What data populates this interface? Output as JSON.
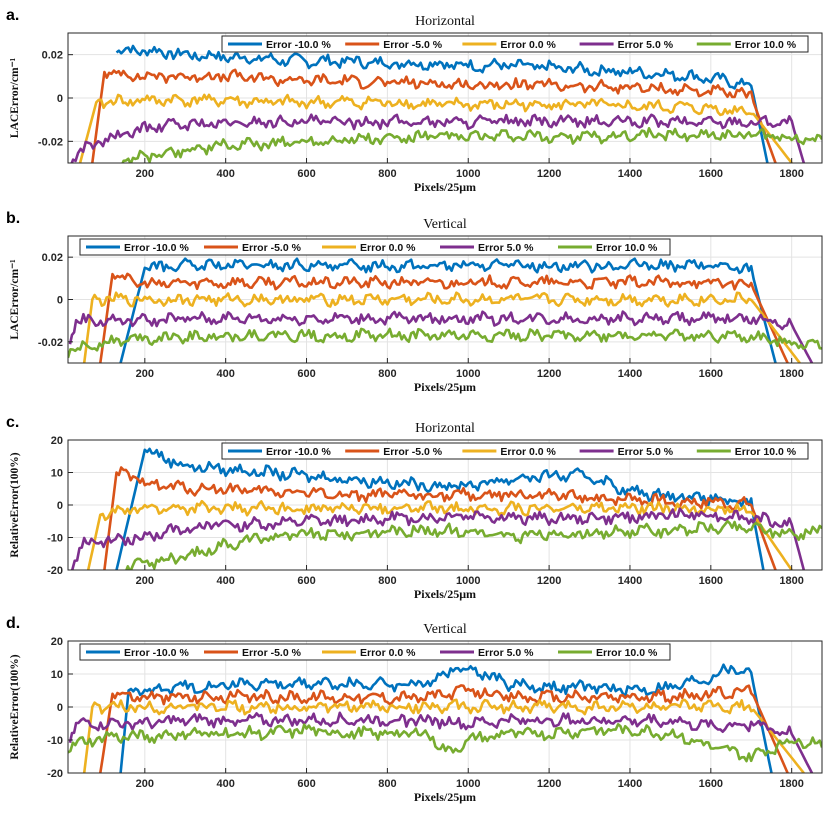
{
  "chart_data": [
    {
      "panel_label": "a.",
      "title": "Horizontal",
      "type": "line",
      "xlabel": "Pixels/25μm",
      "ylabel": "LACError/cm⁻¹",
      "xlim": [
        10,
        1875
      ],
      "ylim": [
        -0.03,
        0.03
      ],
      "xticks": [
        "200",
        "400",
        "600",
        "800",
        "1000",
        "1200",
        "1400",
        "1600",
        "1800"
      ],
      "yticks": [
        "0.02",
        "0",
        "-0.02"
      ],
      "grid": true,
      "legend_position": "top-right",
      "series": [
        {
          "name": "Error -10.0 %",
          "color": "#0072BD",
          "x": [
            130,
            200,
            300,
            400,
            500,
            600,
            700,
            800,
            900,
            1000,
            1100,
            1200,
            1300,
            1400,
            1500,
            1600,
            1700,
            1740
          ],
          "y": [
            0.022,
            0.022,
            0.02,
            0.019,
            0.018,
            0.017,
            0.017,
            0.016,
            0.016,
            0.015,
            0.015,
            0.014,
            0.013,
            0.012,
            0.011,
            0.009,
            0.006,
            -0.03
          ]
        },
        {
          "name": "Error -5.0 %",
          "color": "#D95319",
          "x": [
            70,
            100,
            200,
            300,
            400,
            500,
            600,
            700,
            800,
            900,
            1000,
            1100,
            1200,
            1300,
            1400,
            1500,
            1600,
            1700,
            1760
          ],
          "y": [
            -0.03,
            0.012,
            0.01,
            0.01,
            0.01,
            0.009,
            0.008,
            0.008,
            0.007,
            0.007,
            0.006,
            0.006,
            0.006,
            0.005,
            0.005,
            0.004,
            0.003,
            0.001,
            -0.03
          ]
        },
        {
          "name": "Error 0.0 %",
          "color": "#EDB120",
          "x": [
            40,
            80,
            200,
            300,
            400,
            500,
            600,
            700,
            800,
            900,
            1000,
            1100,
            1200,
            1300,
            1400,
            1500,
            1600,
            1700,
            1800
          ],
          "y": [
            -0.03,
            -0.002,
            -0.001,
            -0.001,
            -0.001,
            -0.002,
            -0.002,
            -0.002,
            -0.002,
            -0.003,
            -0.003,
            -0.003,
            -0.003,
            -0.003,
            -0.004,
            -0.004,
            -0.005,
            -0.006,
            -0.03
          ]
        },
        {
          "name": "Error 5.0 %",
          "color": "#7E2F8E",
          "x": [
            10,
            60,
            200,
            300,
            400,
            500,
            600,
            700,
            800,
            900,
            1000,
            1100,
            1200,
            1300,
            1400,
            1500,
            1600,
            1700,
            1800,
            1830
          ],
          "y": [
            -0.03,
            -0.022,
            -0.014,
            -0.012,
            -0.012,
            -0.011,
            -0.011,
            -0.011,
            -0.011,
            -0.011,
            -0.011,
            -0.011,
            -0.011,
            -0.011,
            -0.011,
            -0.011,
            -0.011,
            -0.011,
            -0.011,
            -0.03
          ]
        },
        {
          "name": "Error 10.0 %",
          "color": "#77AC30",
          "x": [
            130,
            200,
            300,
            400,
            500,
            600,
            700,
            800,
            900,
            1000,
            1100,
            1200,
            1300,
            1400,
            1500,
            1600,
            1700,
            1800,
            1875
          ],
          "y": [
            -0.03,
            -0.027,
            -0.024,
            -0.022,
            -0.021,
            -0.02,
            -0.019,
            -0.019,
            -0.018,
            -0.018,
            -0.018,
            -0.018,
            -0.018,
            -0.017,
            -0.017,
            -0.017,
            -0.017,
            -0.018,
            -0.02
          ]
        }
      ]
    },
    {
      "panel_label": "b.",
      "title": "Vertical",
      "type": "line",
      "xlabel": "Pixels/25μm",
      "ylabel": "LACError/cm⁻¹",
      "xlim": [
        10,
        1875
      ],
      "ylim": [
        -0.03,
        0.03
      ],
      "xticks": [
        "200",
        "400",
        "600",
        "800",
        "1000",
        "1200",
        "1400",
        "1600",
        "1800"
      ],
      "yticks": [
        "0.02",
        "0",
        "-0.02"
      ],
      "grid": true,
      "legend_position": "top-left",
      "series": [
        {
          "name": "Error -10.0 %",
          "color": "#0072BD",
          "x": [
            140,
            200,
            300,
            400,
            500,
            600,
            700,
            800,
            900,
            1000,
            1100,
            1200,
            1300,
            1400,
            1500,
            1600,
            1700,
            1760
          ],
          "y": [
            -0.03,
            0.015,
            0.016,
            0.016,
            0.016,
            0.016,
            0.016,
            0.016,
            0.016,
            0.016,
            0.016,
            0.016,
            0.016,
            0.016,
            0.016,
            0.016,
            0.014,
            -0.03
          ]
        },
        {
          "name": "Error -5.0 %",
          "color": "#D95319",
          "x": [
            90,
            120,
            200,
            300,
            400,
            500,
            600,
            700,
            800,
            900,
            1000,
            1100,
            1200,
            1300,
            1400,
            1500,
            1600,
            1700,
            1790
          ],
          "y": [
            -0.03,
            0.012,
            0.007,
            0.008,
            0.008,
            0.008,
            0.008,
            0.008,
            0.008,
            0.008,
            0.008,
            0.008,
            0.008,
            0.008,
            0.008,
            0.008,
            0.008,
            0.007,
            -0.03
          ]
        },
        {
          "name": "Error 0.0 %",
          "color": "#EDB120",
          "x": [
            50,
            70,
            200,
            300,
            400,
            500,
            600,
            700,
            800,
            900,
            1000,
            1100,
            1200,
            1300,
            1400,
            1500,
            1600,
            1700,
            1820
          ],
          "y": [
            -0.03,
            0.0,
            0.0,
            0.0,
            0.0,
            0.0,
            0.0,
            0.0,
            0.0,
            0.0,
            0.0,
            0.0,
            0.0,
            0.0,
            0.0,
            0.0,
            0.0,
            0.0,
            -0.03
          ]
        },
        {
          "name": "Error 5.0 %",
          "color": "#7E2F8E",
          "x": [
            15,
            30,
            200,
            300,
            400,
            500,
            600,
            700,
            800,
            900,
            1000,
            1100,
            1200,
            1300,
            1400,
            1500,
            1600,
            1700,
            1800,
            1850
          ],
          "y": [
            -0.02,
            -0.01,
            -0.01,
            -0.009,
            -0.009,
            -0.009,
            -0.009,
            -0.009,
            -0.009,
            -0.009,
            -0.009,
            -0.009,
            -0.009,
            -0.009,
            -0.009,
            -0.009,
            -0.009,
            -0.009,
            -0.012,
            -0.03
          ]
        },
        {
          "name": "Error 10.0 %",
          "color": "#77AC30",
          "x": [
            10,
            100,
            200,
            300,
            400,
            500,
            600,
            700,
            800,
            900,
            1000,
            1100,
            1200,
            1300,
            1400,
            1500,
            1600,
            1700,
            1800,
            1875
          ],
          "y": [
            -0.025,
            -0.02,
            -0.018,
            -0.018,
            -0.017,
            -0.017,
            -0.017,
            -0.017,
            -0.017,
            -0.017,
            -0.017,
            -0.017,
            -0.017,
            -0.017,
            -0.017,
            -0.017,
            -0.017,
            -0.018,
            -0.02,
            -0.022
          ]
        }
      ]
    },
    {
      "panel_label": "c.",
      "title": "Horizontal",
      "type": "line",
      "xlabel": "Pixels/25μm",
      "ylabel": "RelativeError(100%)",
      "xlim": [
        10,
        1875
      ],
      "ylim": [
        -20,
        20
      ],
      "xticks": [
        "200",
        "400",
        "600",
        "800",
        "1000",
        "1200",
        "1400",
        "1600",
        "1800"
      ],
      "yticks": [
        "20",
        "10",
        "0",
        "-10",
        "-20"
      ],
      "grid": true,
      "legend_position": "top-right",
      "series": [
        {
          "name": "Error -10.0 %",
          "color": "#0072BD",
          "x": [
            130,
            200,
            300,
            400,
            500,
            600,
            700,
            800,
            900,
            1000,
            1100,
            1200,
            1300,
            1400,
            1500,
            1600,
            1700,
            1730
          ],
          "y": [
            -20,
            17,
            12,
            11,
            10,
            9,
            8,
            7,
            6,
            6,
            8,
            9,
            9,
            4,
            3,
            2,
            0,
            -20
          ]
        },
        {
          "name": "Error -5.0 %",
          "color": "#D95319",
          "x": [
            100,
            130,
            200,
            300,
            400,
            500,
            600,
            700,
            800,
            900,
            1000,
            1100,
            1200,
            1300,
            1400,
            1500,
            1600,
            1700,
            1760
          ],
          "y": [
            -20,
            10,
            7,
            5,
            5,
            4,
            4,
            3,
            3,
            3,
            3,
            3,
            3,
            2,
            2,
            1,
            1,
            0,
            -20
          ]
        },
        {
          "name": "Error 0.0 %",
          "color": "#EDB120",
          "x": [
            60,
            90,
            200,
            300,
            400,
            500,
            600,
            700,
            800,
            900,
            1000,
            1100,
            1200,
            1300,
            1400,
            1500,
            1600,
            1700,
            1800
          ],
          "y": [
            -20,
            -3,
            -1,
            -1,
            -1,
            -1,
            -1,
            -1,
            -1,
            -1,
            -1,
            -1,
            -1,
            -1,
            -1,
            -1,
            -1,
            -2,
            -20
          ]
        },
        {
          "name": "Error 5.0 %",
          "color": "#7E2F8E",
          "x": [
            15,
            50,
            200,
            300,
            400,
            500,
            600,
            700,
            800,
            900,
            1000,
            1100,
            1200,
            1300,
            1400,
            1500,
            1600,
            1700,
            1800,
            1830
          ],
          "y": [
            -20,
            -12,
            -10,
            -7,
            -6,
            -6,
            -5,
            -5,
            -4,
            -4,
            -3,
            -4,
            -4,
            -4,
            -4,
            -3,
            -3,
            -4,
            -6,
            -20
          ]
        },
        {
          "name": "Error 10.0 %",
          "color": "#77AC30",
          "x": [
            140,
            200,
            300,
            400,
            500,
            600,
            700,
            800,
            900,
            1000,
            1100,
            1200,
            1300,
            1400,
            1500,
            1600,
            1700,
            1800,
            1875
          ],
          "y": [
            -20,
            -18,
            -16,
            -12,
            -10,
            -9,
            -9,
            -8,
            -8,
            -8,
            -10,
            -9,
            -9,
            -8,
            -8,
            -7,
            -7,
            -9,
            -8
          ]
        }
      ]
    },
    {
      "panel_label": "d.",
      "title": "Vertical",
      "type": "line",
      "xlabel": "Pixels/25μm",
      "ylabel": "RelativeError(100%)",
      "xlim": [
        10,
        1875
      ],
      "ylim": [
        -20,
        20
      ],
      "xticks": [
        "200",
        "400",
        "600",
        "800",
        "1000",
        "1200",
        "1400",
        "1600",
        "1800"
      ],
      "yticks": [
        "20",
        "10",
        "0",
        "-10",
        "-20"
      ],
      "grid": true,
      "legend_position": "top-left",
      "series": [
        {
          "name": "Error -10.0 %",
          "color": "#0072BD",
          "x": [
            140,
            160,
            200,
            300,
            400,
            500,
            600,
            700,
            800,
            900,
            950,
            1000,
            1100,
            1200,
            1300,
            1400,
            1500,
            1600,
            1650,
            1700,
            1750
          ],
          "y": [
            -20,
            5,
            5,
            6,
            7,
            7,
            7,
            7,
            7,
            7,
            11,
            12,
            7,
            6,
            6,
            5,
            6,
            9,
            12,
            10,
            -20
          ]
        },
        {
          "name": "Error -5.0 %",
          "color": "#D95319",
          "x": [
            90,
            120,
            200,
            300,
            400,
            500,
            600,
            700,
            800,
            900,
            1000,
            1100,
            1200,
            1300,
            1400,
            1500,
            1600,
            1700,
            1790
          ],
          "y": [
            -20,
            4,
            3,
            3,
            3,
            3,
            3,
            3,
            3,
            3,
            5,
            3,
            3,
            3,
            3,
            3,
            4,
            5,
            -20
          ]
        },
        {
          "name": "Error 0.0 %",
          "color": "#EDB120",
          "x": [
            50,
            70,
            200,
            300,
            400,
            500,
            600,
            700,
            800,
            900,
            1000,
            1100,
            1200,
            1300,
            1400,
            1500,
            1600,
            1700,
            1830
          ],
          "y": [
            -20,
            0,
            0,
            0,
            0,
            0,
            0,
            0,
            0,
            0,
            0,
            0,
            0,
            0,
            0,
            0,
            0,
            0,
            -20
          ]
        },
        {
          "name": "Error 5.0 %",
          "color": "#7E2F8E",
          "x": [
            15,
            30,
            200,
            300,
            400,
            500,
            600,
            700,
            800,
            900,
            1000,
            1100,
            1200,
            1300,
            1400,
            1500,
            1600,
            1700,
            1800,
            1850
          ],
          "y": [
            -10,
            -5,
            -5,
            -4,
            -4,
            -4,
            -4,
            -4,
            -4,
            -4,
            -5,
            -4,
            -4,
            -4,
            -4,
            -4,
            -6,
            -5,
            -8,
            -20
          ]
        },
        {
          "name": "Error 10.0 %",
          "color": "#77AC30",
          "x": [
            10,
            100,
            200,
            300,
            400,
            500,
            600,
            700,
            800,
            900,
            950,
            1000,
            1100,
            1200,
            1300,
            1400,
            1500,
            1600,
            1700,
            1800,
            1875
          ],
          "y": [
            -12,
            -9,
            -9,
            -8,
            -8,
            -8,
            -7,
            -8,
            -8,
            -8,
            -14,
            -10,
            -8,
            -8,
            -7,
            -7,
            -8,
            -12,
            -15,
            -10,
            -11
          ]
        }
      ]
    }
  ]
}
